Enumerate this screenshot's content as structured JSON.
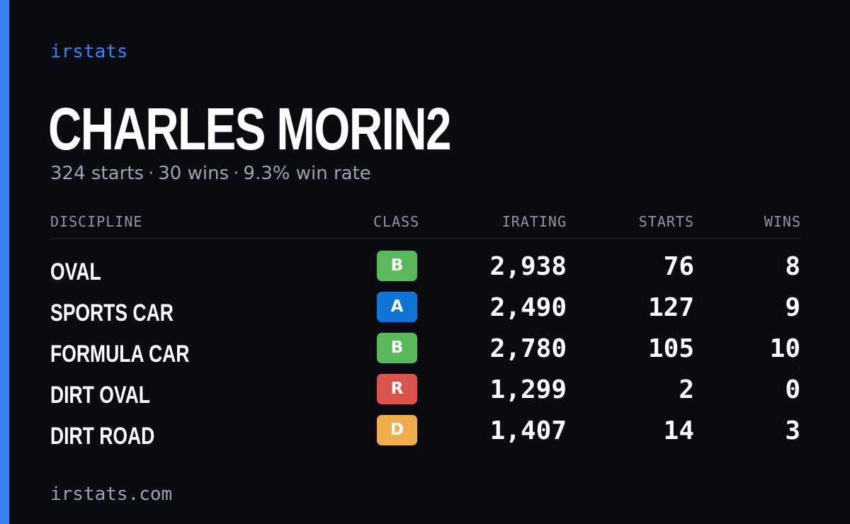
{
  "brand": "irstats",
  "player": {
    "name": "CHARLES MORIN2"
  },
  "summary": {
    "starts": "324 starts",
    "wins": "30 wins",
    "win_rate": "9.3% win rate",
    "separator": "·"
  },
  "table": {
    "headers": {
      "discipline": "DISCIPLINE",
      "class": "CLASS",
      "irating": "IRATING",
      "starts": "STARTS",
      "wins": "WINS"
    },
    "rows": [
      {
        "discipline": "OVAL",
        "class": "B",
        "class_color": "#5cb85c",
        "irating": "2,938",
        "starts": "76",
        "wins": "8"
      },
      {
        "discipline": "SPORTS CAR",
        "class": "A",
        "class_color": "#0f74d6",
        "irating": "2,490",
        "starts": "127",
        "wins": "9"
      },
      {
        "discipline": "FORMULA CAR",
        "class": "B",
        "class_color": "#5cb85c",
        "irating": "2,780",
        "starts": "105",
        "wins": "10"
      },
      {
        "discipline": "DIRT OVAL",
        "class": "R",
        "class_color": "#d9534f",
        "irating": "1,299",
        "starts": "2",
        "wins": "0"
      },
      {
        "discipline": "DIRT ROAD",
        "class": "D",
        "class_color": "#f0ad4e",
        "irating": "1,407",
        "starts": "14",
        "wins": "3"
      }
    ]
  },
  "footer": {
    "site": "irstats.com"
  },
  "colors": {
    "background": "#0a0c12",
    "accent": "#3b82f6",
    "muted_text": "#9aa3b5"
  }
}
